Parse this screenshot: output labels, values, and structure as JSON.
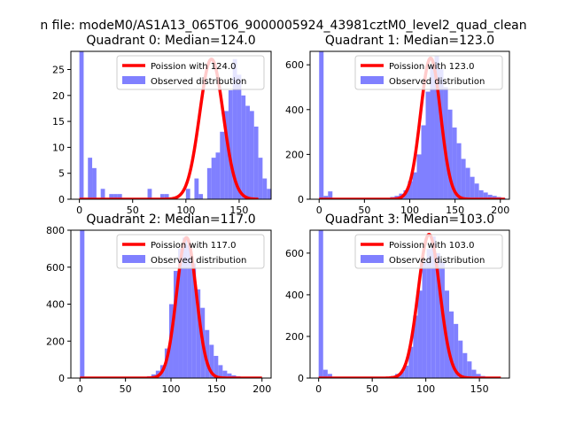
{
  "figure": {
    "suptitle": "n file: modeM0/AS1A13_065T06_9000005924_43981cztM0_level2_quad_clean"
  },
  "colors": {
    "observed": "#8080ff",
    "poisson": "#ff0000",
    "axis": "#000000",
    "legend_border": "#cccccc"
  },
  "chart_data": [
    {
      "type": "bar",
      "title": "Quadrant 0: Median=124.0",
      "legend": [
        "Poission with 124.0",
        "Observed distribution"
      ],
      "legend_position": "upper right",
      "xlim": [
        -8,
        180
      ],
      "ylim": [
        0,
        28.5
      ],
      "xticks": [
        0,
        50,
        100,
        150
      ],
      "yticks": [
        0,
        5,
        10,
        15,
        20,
        25
      ],
      "hist_bin_edges_start": 0,
      "hist_bin_width": 4,
      "hist_values": [
        30,
        0,
        8,
        6,
        0,
        2,
        0,
        1,
        1,
        1,
        0,
        0,
        0,
        0,
        0,
        0,
        2,
        0,
        0,
        1,
        1,
        0,
        0,
        0,
        0,
        2,
        0,
        4,
        1,
        0,
        6,
        8,
        9,
        13,
        17,
        21,
        27,
        24,
        20,
        18,
        17,
        14,
        8,
        4,
        2,
        1,
        0
      ],
      "poisson_x_range": [
        0,
        168
      ],
      "poisson_peak": 27
    },
    {
      "type": "bar",
      "title": "Quadrant 1: Median=123.0",
      "legend": [
        "Poission with 123.0",
        "Observed distribution"
      ],
      "legend_position": "upper right",
      "xlim": [
        -10,
        210
      ],
      "ylim": [
        0,
        660
      ],
      "xticks": [
        0,
        50,
        100,
        150,
        200
      ],
      "yticks": [
        0,
        200,
        400,
        600
      ],
      "hist_bin_edges_start": 0,
      "hist_bin_width": 4.9,
      "hist_values": [
        720,
        15,
        35,
        0,
        0,
        0,
        0,
        0,
        0,
        0,
        0,
        0,
        0,
        0,
        0,
        0,
        10,
        15,
        25,
        40,
        80,
        120,
        200,
        330,
        480,
        600,
        640,
        580,
        500,
        400,
        320,
        250,
        180,
        140,
        100,
        70,
        40,
        30,
        20,
        15,
        10,
        5
      ],
      "poisson_x_range": [
        0,
        205
      ],
      "poisson_peak": 630
    },
    {
      "type": "bar",
      "title": "Quadrant 2: Median=117.0",
      "legend": [
        "Poission with 117.0",
        "Observed distribution"
      ],
      "legend_position": "upper right",
      "xlim": [
        -10,
        210
      ],
      "ylim": [
        0,
        800
      ],
      "xticks": [
        0,
        50,
        100,
        150,
        200
      ],
      "yticks": [
        0,
        200,
        400,
        600,
        800
      ],
      "hist_bin_edges_start": 0,
      "hist_bin_width": 4.9,
      "hist_values": [
        900,
        0,
        0,
        0,
        0,
        0,
        0,
        0,
        0,
        0,
        0,
        0,
        0,
        0,
        5,
        10,
        20,
        40,
        70,
        160,
        400,
        580,
        700,
        760,
        720,
        620,
        480,
        380,
        260,
        180,
        120,
        70,
        40,
        25,
        15,
        10,
        5,
        3,
        2,
        1,
        1
      ],
      "poisson_x_range": [
        0,
        200
      ],
      "poisson_peak": 760
    },
    {
      "type": "bar",
      "title": "Quadrant 3: Median=103.0",
      "legend": [
        "Poission with 103.0",
        "Observed distribution"
      ],
      "legend_position": "upper right",
      "xlim": [
        -8,
        178
      ],
      "ylim": [
        0,
        710
      ],
      "xticks": [
        0,
        50,
        100,
        150
      ],
      "yticks": [
        0,
        200,
        400,
        600
      ],
      "hist_bin_edges_start": 0,
      "hist_bin_width": 4.2,
      "hist_values": [
        800,
        40,
        20,
        0,
        0,
        0,
        0,
        0,
        0,
        0,
        0,
        0,
        0,
        0,
        0,
        5,
        10,
        20,
        30,
        60,
        150,
        300,
        420,
        560,
        620,
        680,
        600,
        560,
        420,
        320,
        260,
        180,
        120,
        80,
        40,
        20,
        10,
        5,
        3,
        2
      ],
      "poisson_x_range": [
        0,
        170
      ],
      "poisson_peak": 690
    }
  ]
}
